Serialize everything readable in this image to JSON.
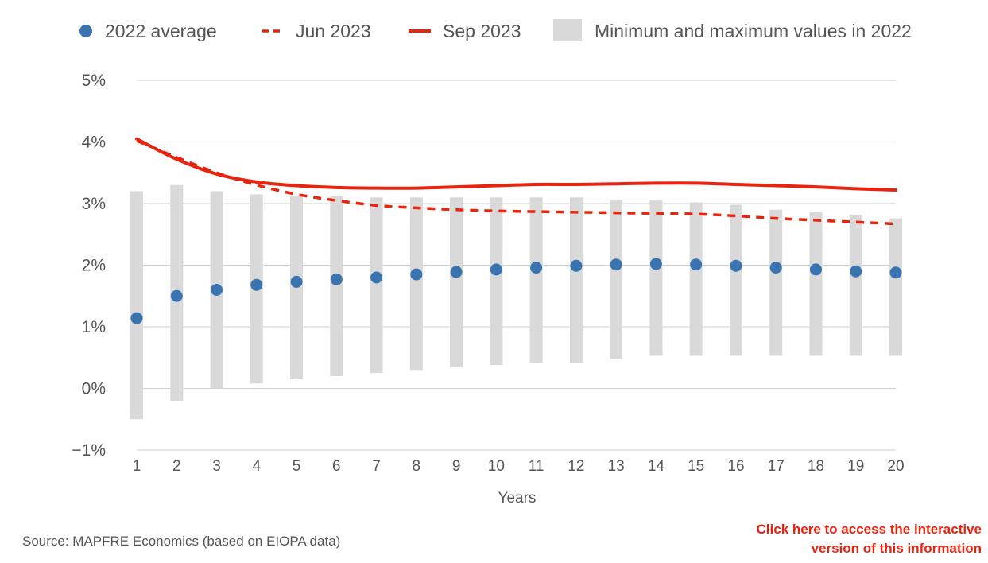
{
  "chart_data": {
    "type": "line",
    "xlabel": "Years",
    "ylabel": "",
    "x": [
      1,
      2,
      3,
      4,
      5,
      6,
      7,
      8,
      9,
      10,
      11,
      12,
      13,
      14,
      15,
      16,
      17,
      18,
      19,
      20
    ],
    "y_ticks": [
      "5%",
      "4%",
      "3%",
      "2%",
      "1%",
      "0%",
      "−1%"
    ],
    "y_tick_values": [
      5,
      4,
      3,
      2,
      1,
      0,
      -1
    ],
    "ylim": [
      -1,
      5
    ],
    "xlim": [
      1,
      20
    ],
    "grid": true,
    "legend_position": "top",
    "series": [
      {
        "name": "2022 average",
        "kind": "dots",
        "color": "#3a74b0",
        "values": [
          1.14,
          1.5,
          1.6,
          1.68,
          1.73,
          1.77,
          1.8,
          1.85,
          1.89,
          1.93,
          1.96,
          1.99,
          2.01,
          2.02,
          2.01,
          1.99,
          1.96,
          1.93,
          1.9,
          1.88
        ]
      },
      {
        "name": "Jun 2023",
        "kind": "dashed-line",
        "color": "#e8230e",
        "values": [
          4.02,
          3.75,
          3.5,
          3.3,
          3.15,
          3.05,
          2.97,
          2.93,
          2.9,
          2.88,
          2.87,
          2.86,
          2.85,
          2.84,
          2.83,
          2.8,
          2.76,
          2.73,
          2.7,
          2.67
        ]
      },
      {
        "name": "Sep 2023",
        "kind": "solid-line",
        "color": "#e8230e",
        "values": [
          4.05,
          3.72,
          3.48,
          3.35,
          3.29,
          3.26,
          3.25,
          3.25,
          3.27,
          3.29,
          3.31,
          3.31,
          3.32,
          3.33,
          3.33,
          3.31,
          3.29,
          3.27,
          3.24,
          3.22
        ]
      },
      {
        "name": "Minimum and maximum values in 2022",
        "kind": "range-bars",
        "color": "#d9d9d9",
        "min": [
          -0.5,
          -0.2,
          0.0,
          0.08,
          0.15,
          0.2,
          0.25,
          0.3,
          0.35,
          0.38,
          0.42,
          0.42,
          0.48,
          0.53,
          0.53,
          0.53,
          0.53,
          0.53,
          0.53,
          0.53
        ],
        "max": [
          3.2,
          3.3,
          3.2,
          3.15,
          3.12,
          3.12,
          3.1,
          3.1,
          3.1,
          3.1,
          3.1,
          3.1,
          3.05,
          3.05,
          3.02,
          2.98,
          2.9,
          2.86,
          2.82,
          2.76
        ]
      }
    ]
  },
  "footer": {
    "source": "Source: MAPFRE Economics (based on EIOPA data)",
    "link_line1": "Click here to access the interactive",
    "link_line2": "version of this information"
  }
}
